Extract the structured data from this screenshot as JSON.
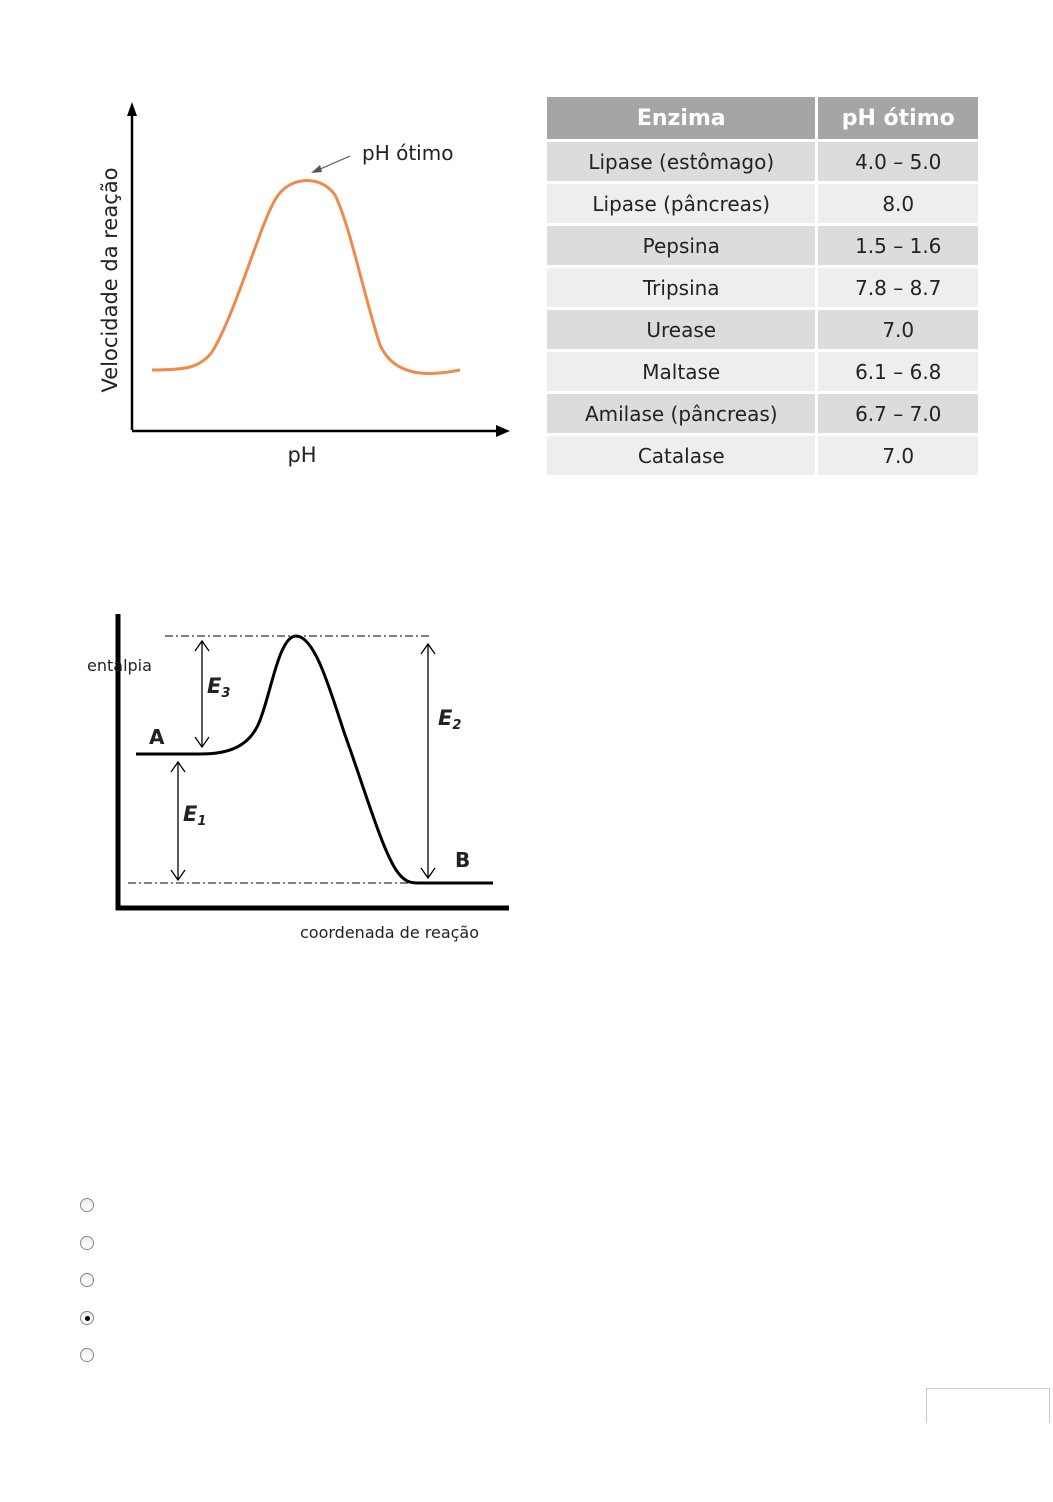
{
  "ph_chart": {
    "ylabel": "Velocidade da reação",
    "xlabel": "pH",
    "annotation": "pH ótimo",
    "curve_color": "#f08a4b"
  },
  "table": {
    "headers": [
      "Enzima",
      "pH ótimo"
    ],
    "rows": [
      [
        "Lipase (estômago)",
        "4.0 – 5.0"
      ],
      [
        "Lipase (pâncreas)",
        "8.0"
      ],
      [
        "Pepsina",
        "1.5 – 1.6"
      ],
      [
        "Tripsina",
        "7.8 – 8.7"
      ],
      [
        "Urease",
        "7.0"
      ],
      [
        "Maltase",
        "6.1 – 6.8"
      ],
      [
        "Amilase (pâncreas)",
        "6.7 – 7.0"
      ],
      [
        "Catalase",
        "7.0"
      ]
    ]
  },
  "energy_chart": {
    "ylabel": "entalpia",
    "xlabel": "coordenada de reação",
    "point_a": "A",
    "point_b": "B",
    "e1": "E",
    "e1_sub": "1",
    "e2": "E",
    "e2_sub": "2",
    "e3": "E",
    "e3_sub": "3"
  },
  "options": {
    "count": 5,
    "selected_index": 3
  }
}
